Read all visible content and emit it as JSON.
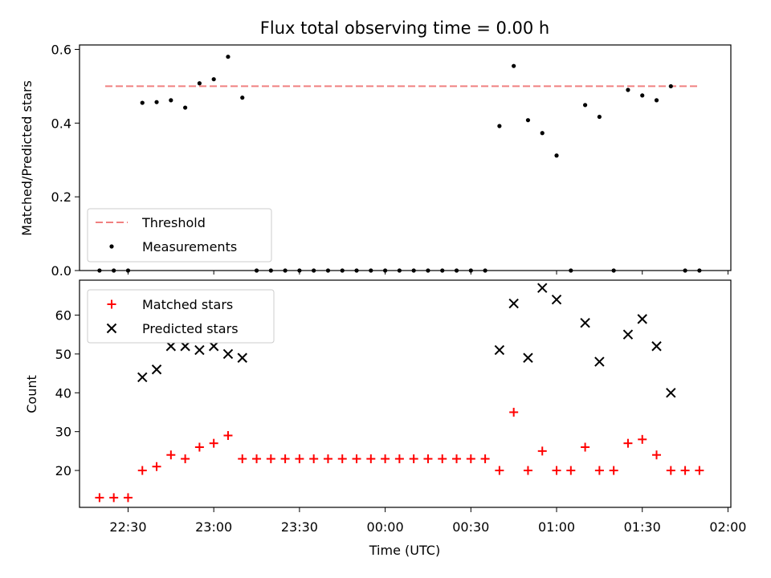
{
  "chart_data": [
    {
      "type": "scatter",
      "title": "Flux total observing time = 0.00 h",
      "xlabel": "",
      "ylabel": "Matched/Predicted stars",
      "ylim": [
        0.0,
        0.612
      ],
      "yticks": [
        "0.0",
        "0.2",
        "0.4",
        "0.6"
      ],
      "legend_position": "lower-left",
      "threshold": {
        "name": "Threshold",
        "value": 0.5,
        "color": "#f08080",
        "x_start": "22:22",
        "x_end": "01:50"
      },
      "series": [
        {
          "name": "Measurements",
          "color": "#000000",
          "marker": "dot",
          "x": [
            "22:20",
            "22:25",
            "22:30",
            "22:35",
            "22:40",
            "22:45",
            "22:50",
            "22:55",
            "23:00",
            "23:05",
            "23:10",
            "23:15",
            "23:20",
            "23:25",
            "23:30",
            "23:35",
            "23:40",
            "23:45",
            "23:50",
            "23:55",
            "00:00",
            "00:05",
            "00:10",
            "00:15",
            "00:20",
            "00:25",
            "00:30",
            "00:35",
            "00:40",
            "00:45",
            "00:50",
            "00:55",
            "01:00",
            "01:05",
            "01:10",
            "01:15",
            "01:20",
            "01:25",
            "01:30",
            "01:35",
            "01:40",
            "01:45",
            "01:50"
          ],
          "y": [
            0,
            0,
            0,
            0.455,
            0.457,
            0.462,
            0.442,
            0.508,
            0.519,
            0.58,
            0.469,
            0,
            0,
            0,
            0,
            0,
            0,
            0,
            0,
            0,
            0,
            0,
            0,
            0,
            0,
            0,
            0,
            0,
            0.392,
            0.555,
            0.408,
            0.373,
            0.312,
            0,
            0.449,
            0.417,
            0,
            0.49,
            0.475,
            0.462,
            0.5,
            0,
            0
          ]
        }
      ]
    },
    {
      "type": "scatter",
      "title": "",
      "xlabel": "Time (UTC)",
      "ylabel": "Count",
      "ylim": [
        10.5,
        69
      ],
      "yticks": [
        "20",
        "30",
        "40",
        "50",
        "60"
      ],
      "xticks": [
        "22:30",
        "23:00",
        "23:30",
        "00:00",
        "00:30",
        "01:00",
        "01:30",
        "02:00"
      ],
      "legend_position": "upper-left",
      "series": [
        {
          "name": "Matched stars",
          "color": "#ff0000",
          "marker": "plus",
          "x": [
            "22:20",
            "22:25",
            "22:30",
            "22:35",
            "22:40",
            "22:45",
            "22:50",
            "22:55",
            "23:00",
            "23:05",
            "23:10",
            "23:15",
            "23:20",
            "23:25",
            "23:30",
            "23:35",
            "23:40",
            "23:45",
            "23:50",
            "23:55",
            "00:00",
            "00:05",
            "00:10",
            "00:15",
            "00:20",
            "00:25",
            "00:30",
            "00:35",
            "00:40",
            "00:45",
            "00:50",
            "00:55",
            "01:00",
            "01:05",
            "01:10",
            "01:15",
            "01:20",
            "01:25",
            "01:30",
            "01:35",
            "01:40",
            "01:45",
            "01:50"
          ],
          "y": [
            13,
            13,
            13,
            20,
            21,
            24,
            23,
            26,
            27,
            29,
            23,
            23,
            23,
            23,
            23,
            23,
            23,
            23,
            23,
            23,
            23,
            23,
            23,
            23,
            23,
            23,
            23,
            23,
            20,
            35,
            20,
            25,
            20,
            20,
            26,
            20,
            20,
            27,
            28,
            24,
            20,
            20,
            20
          ]
        },
        {
          "name": "Predicted stars",
          "color": "#000000",
          "marker": "x",
          "x": [
            "22:35",
            "22:40",
            "22:45",
            "22:50",
            "22:55",
            "23:00",
            "23:05",
            "23:10",
            "00:40",
            "00:45",
            "00:50",
            "00:55",
            "01:00",
            "01:10",
            "01:15",
            "01:25",
            "01:30",
            "01:35",
            "01:40"
          ],
          "y": [
            44,
            46,
            52,
            52,
            51,
            52,
            50,
            49,
            51,
            63,
            49,
            67,
            64,
            58,
            48,
            55,
            59,
            52,
            40
          ]
        }
      ]
    }
  ]
}
